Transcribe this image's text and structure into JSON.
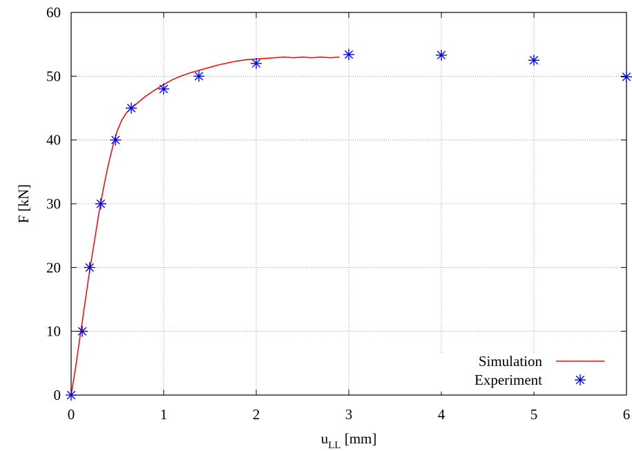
{
  "chart_data": {
    "type": "line",
    "xlabel": "u",
    "xlabel_subscript": "LL",
    "xlabel_unit": " [mm]",
    "ylabel": "F [kN]",
    "xlim": [
      0,
      6
    ],
    "ylim": [
      0,
      60
    ],
    "xticks": [
      "0",
      "1",
      "2",
      "3",
      "4",
      "5",
      "6"
    ],
    "yticks": [
      "0",
      "10",
      "20",
      "30",
      "40",
      "50",
      "60"
    ],
    "grid": true,
    "legend_position": "bottom-right",
    "series": [
      {
        "name": "Simulation",
        "style": "line",
        "color": "#ff0000",
        "x": [
          0,
          0.05,
          0.1,
          0.15,
          0.2,
          0.25,
          0.3,
          0.35,
          0.4,
          0.45,
          0.5,
          0.55,
          0.6,
          0.65,
          0.7,
          0.8,
          0.9,
          1.0,
          1.1,
          1.2,
          1.3,
          1.4,
          1.5,
          1.6,
          1.7,
          1.8,
          1.9,
          2.0,
          2.1,
          2.2,
          2.3,
          2.4,
          2.5,
          2.6,
          2.7,
          2.8,
          2.9
        ],
        "y": [
          0,
          4.5,
          9.5,
          14.5,
          19.5,
          24.0,
          28.5,
          32.5,
          36.0,
          39.0,
          41.5,
          43.2,
          44.3,
          45.0,
          45.6,
          46.8,
          47.8,
          48.7,
          49.5,
          50.1,
          50.6,
          51.0,
          51.4,
          51.8,
          52.1,
          52.4,
          52.6,
          52.7,
          52.8,
          52.9,
          53.0,
          52.9,
          53.0,
          52.9,
          53.0,
          52.9,
          53.0
        ]
      },
      {
        "name": "Experiment",
        "style": "markers",
        "marker": "asterisk",
        "color": "#0000ff",
        "x": [
          0,
          0.12,
          0.2,
          0.32,
          0.48,
          0.65,
          1.0,
          1.38,
          2.0,
          3.0,
          4.0,
          5.0,
          6.0
        ],
        "y": [
          0,
          10,
          20,
          30,
          40,
          45,
          48,
          50,
          52,
          53.4,
          53.3,
          52.5,
          49.9
        ]
      }
    ]
  }
}
